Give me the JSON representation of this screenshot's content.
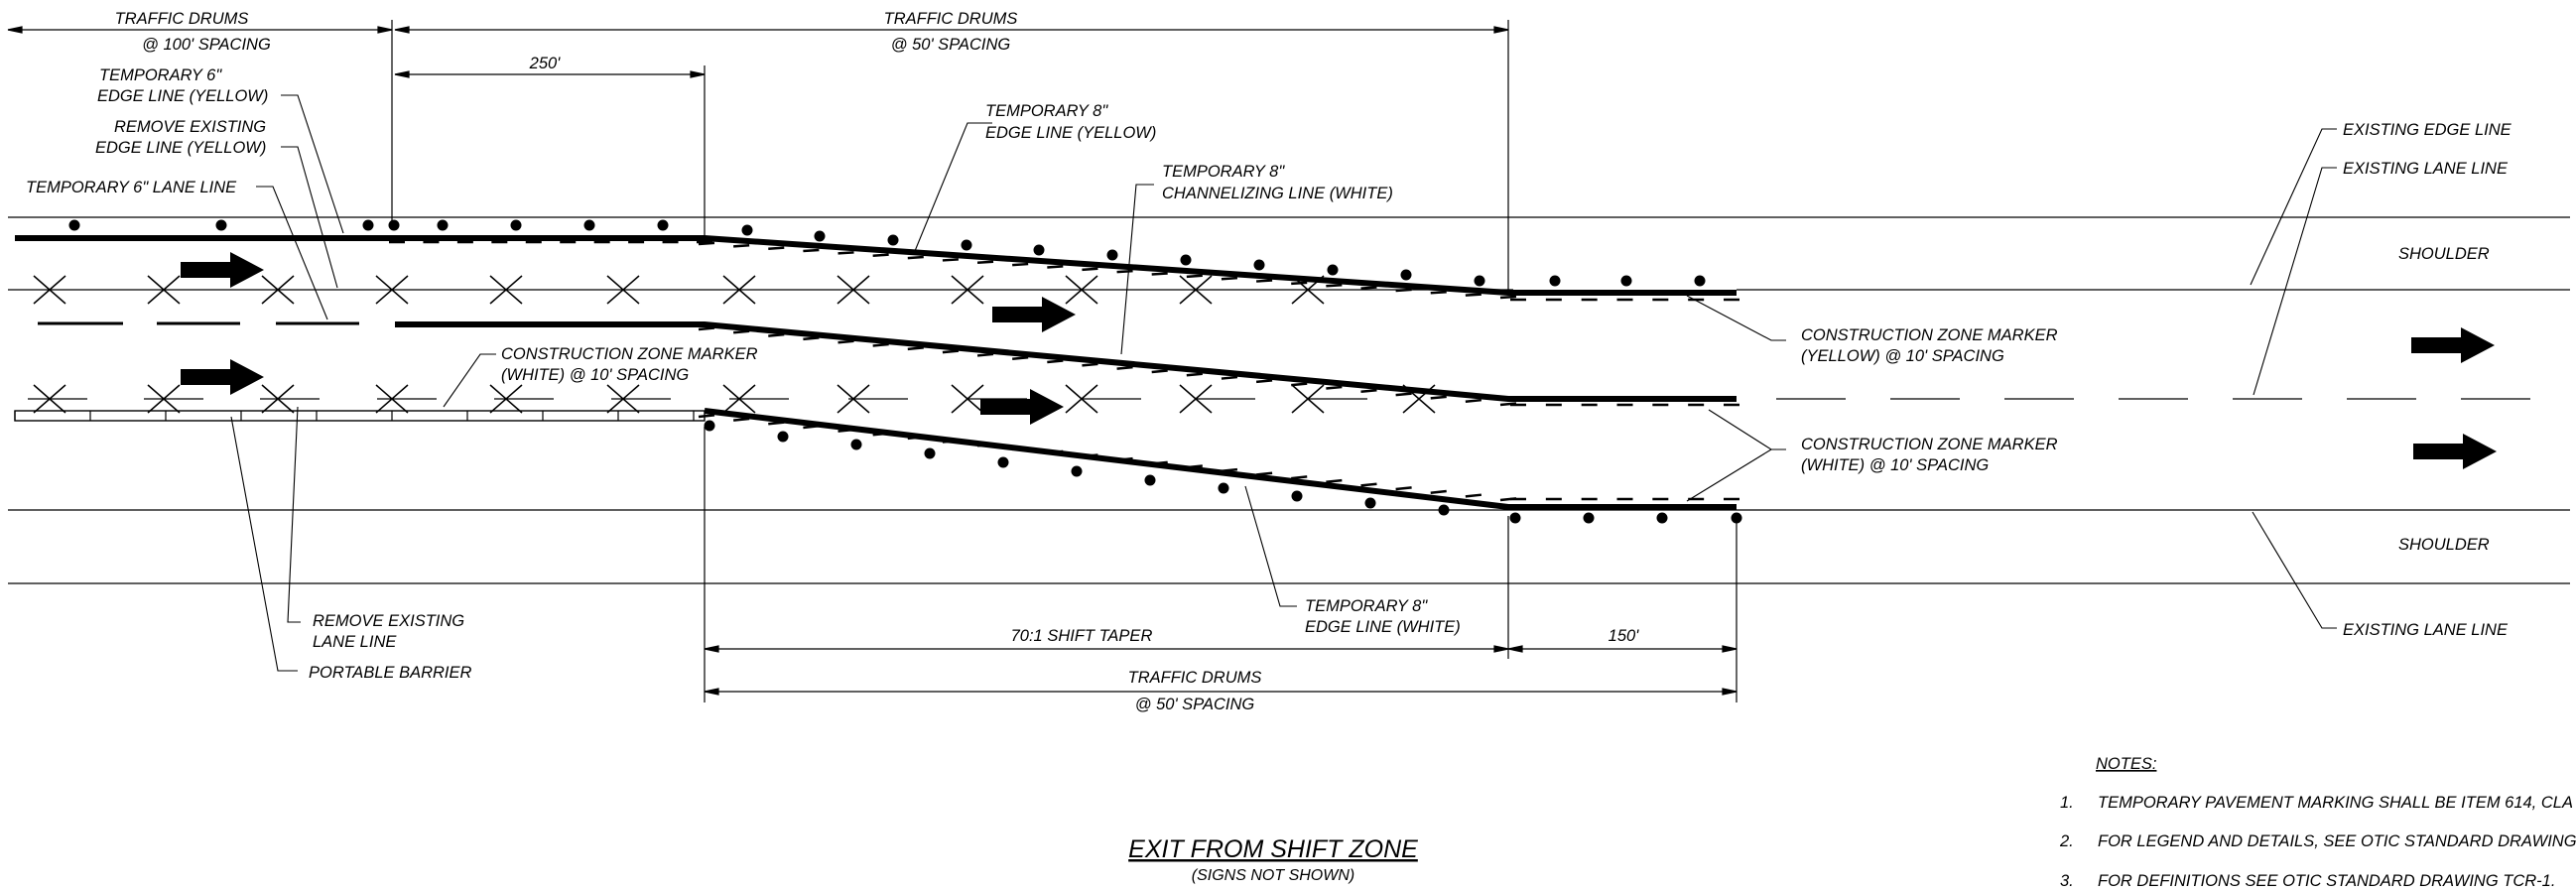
{
  "dimensions": {
    "drums_100": [
      "TRAFFIC DRUMS",
      "@ 100' SPACING"
    ],
    "drums_50_top": [
      "TRAFFIC DRUMS",
      "@ 50' SPACING"
    ],
    "len_250": "250'",
    "shift_taper": "70:1 SHIFT TAPER",
    "len_150": "150'",
    "drums_50_bottom": [
      "TRAFFIC DRUMS",
      "@ 50' SPACING"
    ]
  },
  "callouts": {
    "temp6_edge": [
      "TEMPORARY 6\"",
      "EDGE LINE (YELLOW)"
    ],
    "remove_edge": [
      "REMOVE EXISTING",
      "EDGE LINE (YELLOW)"
    ],
    "temp6_lane": "TEMPORARY 6\" LANE LINE",
    "temp8_edge_yellow": [
      "TEMPORARY 8\"",
      "EDGE LINE (YELLOW)"
    ],
    "temp8_channel": [
      "TEMPORARY 8\"",
      "CHANNELIZING LINE (WHITE)"
    ],
    "czm_white_left": [
      "CONSTRUCTION ZONE MARKER",
      "(WHITE) @ 10' SPACING"
    ],
    "czm_yellow_right": [
      "CONSTRUCTION ZONE MARKER",
      "(YELLOW) @ 10' SPACING"
    ],
    "czm_white_right": [
      "CONSTRUCTION ZONE MARKER",
      "(WHITE) @ 10' SPACING"
    ],
    "remove_lane": [
      "REMOVE EXISTING",
      "LANE LINE"
    ],
    "portable_barrier": "PORTABLE BARRIER",
    "temp8_edge_white": [
      "TEMPORARY 8\"",
      "EDGE LINE (WHITE)"
    ],
    "existing_edge": "EXISTING EDGE LINE",
    "existing_lane_top": "EXISTING LANE LINE",
    "existing_lane_bottom": "EXISTING LANE LINE",
    "shoulder_top": "SHOULDER",
    "shoulder_bottom": "SHOULDER"
  },
  "title": {
    "main": "EXIT FROM SHIFT ZONE",
    "sub": "(SIGNS NOT SHOWN)"
  },
  "notes": {
    "heading": "NOTES:",
    "items": [
      {
        "num": "1.",
        "text": "TEMPORARY PAVEMENT MARKING SHALL BE ITEM 614, CLA"
      },
      {
        "num": "2.",
        "text": "FOR LEGEND AND DETAILS, SEE OTIC STANDARD DRAWING"
      },
      {
        "num": "3.",
        "text": "FOR DEFINITIONS SEE OTIC STANDARD DRAWING TCR-1."
      }
    ]
  }
}
